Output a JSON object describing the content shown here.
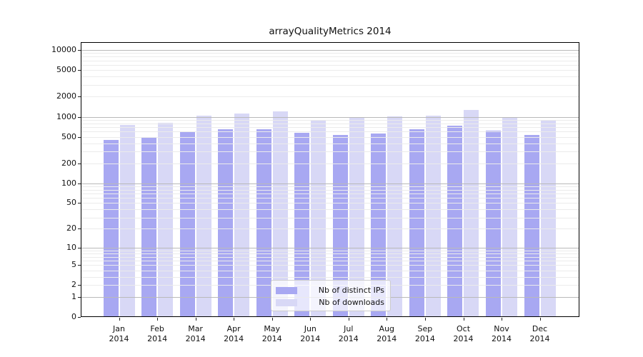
{
  "chart_data": {
    "type": "bar",
    "title": "arrayQualityMetrics 2014",
    "x_year": "2014",
    "categories": [
      "Jan",
      "Feb",
      "Mar",
      "Apr",
      "May",
      "Jun",
      "Jul",
      "Aug",
      "Sep",
      "Oct",
      "Nov",
      "Dec"
    ],
    "series": [
      {
        "name": "Nb of distinct IPs",
        "color": "#a8a8f2",
        "values": [
          450,
          490,
          610,
          650,
          650,
          570,
          530,
          560,
          655,
          730,
          615,
          530
        ]
      },
      {
        "name": "Nb of downloads",
        "color": "#d8d8f6",
        "values": [
          760,
          810,
          1030,
          1120,
          1220,
          900,
          970,
          1010,
          1030,
          1270,
          990,
          880
        ]
      }
    ],
    "yscale": "log10(value+1)",
    "ylim": [
      0,
      13000
    ],
    "yticks": [
      10000,
      5000,
      2000,
      1000,
      500,
      200,
      100,
      50,
      20,
      10,
      5,
      2,
      1,
      0
    ],
    "grid": {
      "major_values": [
        1,
        10,
        100,
        1000,
        10000
      ],
      "minor_decades": [
        1,
        10,
        100,
        1000
      ],
      "major_color": "#b9b9b9",
      "minor_color": "#ebebeb",
      "drawn_above_bars": true
    },
    "legend_position": "lower center inside axes"
  },
  "legend": {
    "items": [
      {
        "label": "Nb of distinct IPs"
      },
      {
        "label": "Nb of downloads"
      }
    ]
  }
}
